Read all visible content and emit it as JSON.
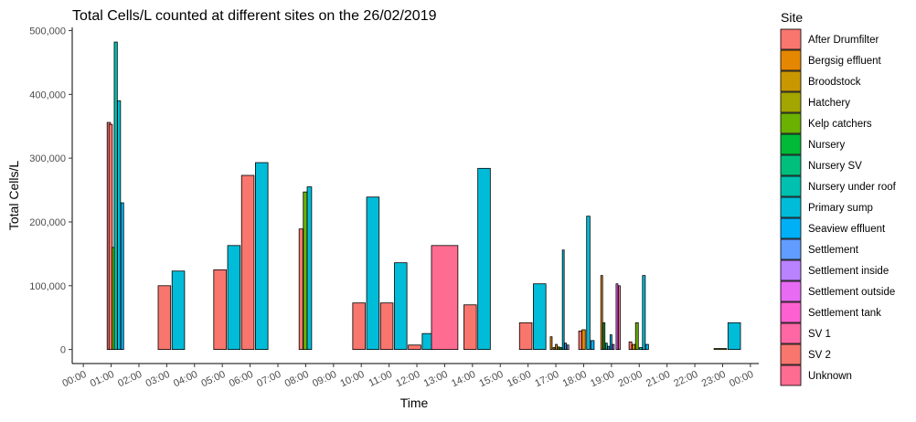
{
  "chart_data": {
    "type": "bar",
    "title": "Total Cells/L counted at different sites on the 26/02/2019",
    "xlabel": "Time",
    "ylabel": "Total Cells/L",
    "ylim": [
      -22000,
      505000
    ],
    "y_ticks": [
      0,
      100000,
      200000,
      300000,
      400000,
      500000
    ],
    "y_tick_labels": [
      "0",
      "100,000",
      "200,000",
      "300,000",
      "400,000",
      "500,000"
    ],
    "x_tick_labels": [
      "00:00",
      "01:00",
      "02:00",
      "03:00",
      "04:00",
      "05:00",
      "06:00",
      "07:00",
      "08:00",
      "09:00",
      "10:00",
      "11:00",
      "12:00",
      "13:00",
      "14:00",
      "15:00",
      "16:00",
      "17:00",
      "18:00",
      "19:00",
      "20:00",
      "21:00",
      "22:00",
      "23:00",
      "00:00"
    ],
    "x_tick_hours": [
      0,
      1,
      2,
      3,
      4,
      5,
      6,
      7,
      8,
      9,
      10,
      11,
      12,
      13,
      14,
      15,
      16,
      17,
      18,
      19,
      20,
      21,
      22,
      23,
      24
    ],
    "xlim": [
      -0.4,
      24.3
    ],
    "legend": {
      "title": "Site",
      "position": "right",
      "entries": [
        {
          "name": "After Drumfilter",
          "color": "#F8766D"
        },
        {
          "name": "Bergsig effluent",
          "color": "#E58700"
        },
        {
          "name": "Broodstock",
          "color": "#C99800"
        },
        {
          "name": "Hatchery",
          "color": "#A3A500"
        },
        {
          "name": "Kelp catchers",
          "color": "#6BB100"
        },
        {
          "name": "Nursery",
          "color": "#00BA38"
        },
        {
          "name": "Nursery SV",
          "color": "#00BF7D"
        },
        {
          "name": "Nursery under roof",
          "color": "#00C0AF"
        },
        {
          "name": "Primary sump",
          "color": "#00BCD8"
        },
        {
          "name": "Seaview effluent",
          "color": "#00B0F6"
        },
        {
          "name": "Settlement",
          "color": "#619CFF"
        },
        {
          "name": "Settlement inside",
          "color": "#B983FF"
        },
        {
          "name": "Settlement outside",
          "color": "#E76BF3"
        },
        {
          "name": "Settlement tank",
          "color": "#FD61D1"
        },
        {
          "name": "SV 1",
          "color": "#FF67A4"
        },
        {
          "name": "SV 2",
          "color": "#F8766D"
        },
        {
          "name": "Unknown",
          "color": "#FF6C91"
        }
      ]
    },
    "bars": [
      {
        "time": "00:55",
        "hour": 0.917,
        "width": 0.12,
        "site": "After Drumfilter",
        "value": 356000
      },
      {
        "time": "00:59",
        "hour": 0.983,
        "width": 0.12,
        "site": "After Drumfilter",
        "value": 353000
      },
      {
        "time": "01:05",
        "hour": 1.083,
        "width": 0.11,
        "site": "Kelp catchers",
        "value": 160000
      },
      {
        "time": "01:10",
        "hour": 1.167,
        "width": 0.11,
        "site": "Nursery under roof",
        "value": 482000
      },
      {
        "time": "01:17",
        "hour": 1.283,
        "width": 0.11,
        "site": "Primary sump",
        "value": 390000
      },
      {
        "time": "01:24",
        "hour": 1.4,
        "width": 0.1,
        "site": "Seaview effluent",
        "value": 230000
      },
      {
        "time": "02:55",
        "hour": 2.917,
        "width": 0.45,
        "site": "After Drumfilter",
        "value": 100000
      },
      {
        "time": "03:25",
        "hour": 3.417,
        "width": 0.45,
        "site": "Primary sump",
        "value": 123000
      },
      {
        "time": "04:55",
        "hour": 4.917,
        "width": 0.45,
        "site": "After Drumfilter",
        "value": 125000
      },
      {
        "time": "05:25",
        "hour": 5.417,
        "width": 0.45,
        "site": "Primary sump",
        "value": 163000
      },
      {
        "time": "05:55",
        "hour": 5.917,
        "width": 0.45,
        "site": "After Drumfilter",
        "value": 273000
      },
      {
        "time": "06:25",
        "hour": 6.417,
        "width": 0.45,
        "site": "Primary sump",
        "value": 293000
      },
      {
        "time": "07:50",
        "hour": 7.833,
        "width": 0.14,
        "site": "After Drumfilter",
        "value": 189000
      },
      {
        "time": "07:59",
        "hour": 7.983,
        "width": 0.14,
        "site": "Kelp catchers",
        "value": 247000
      },
      {
        "time": "08:08",
        "hour": 8.133,
        "width": 0.16,
        "site": "Primary sump",
        "value": 255000
      },
      {
        "time": "09:55",
        "hour": 9.917,
        "width": 0.45,
        "site": "After Drumfilter",
        "value": 73000
      },
      {
        "time": "10:25",
        "hour": 10.417,
        "width": 0.45,
        "site": "Primary sump",
        "value": 239000
      },
      {
        "time": "10:55",
        "hour": 10.917,
        "width": 0.45,
        "site": "After Drumfilter",
        "value": 73000
      },
      {
        "time": "11:25",
        "hour": 11.417,
        "width": 0.45,
        "site": "Primary sump",
        "value": 136000
      },
      {
        "time": "11:55",
        "hour": 11.917,
        "width": 0.45,
        "site": "After Drumfilter",
        "value": 7000
      },
      {
        "time": "12:25",
        "hour": 12.417,
        "width": 0.45,
        "site": "Primary sump",
        "value": 25000
      },
      {
        "time": "13:00",
        "hour": 13.0,
        "width": 0.95,
        "site": "Unknown",
        "value": 163000
      },
      {
        "time": "13:55",
        "hour": 13.917,
        "width": 0.45,
        "site": "After Drumfilter",
        "value": 70000
      },
      {
        "time": "14:25",
        "hour": 14.417,
        "width": 0.45,
        "site": "Primary sump",
        "value": 284000
      },
      {
        "time": "15:55",
        "hour": 15.917,
        "width": 0.45,
        "site": "After Drumfilter",
        "value": 42000
      },
      {
        "time": "16:25",
        "hour": 16.417,
        "width": 0.45,
        "site": "Primary sump",
        "value": 103000
      },
      {
        "time": "16:50",
        "hour": 16.833,
        "width": 0.06,
        "site": "Bergsig effluent",
        "value": 20000
      },
      {
        "time": "16:56",
        "hour": 16.933,
        "width": 0.06,
        "site": "Broodstock",
        "value": 3000
      },
      {
        "time": "17:01",
        "hour": 17.017,
        "width": 0.06,
        "site": "Bergsig effluent",
        "value": 8000
      },
      {
        "time": "17:06",
        "hour": 17.1,
        "width": 0.06,
        "site": "Kelp catchers",
        "value": 4000
      },
      {
        "time": "17:11",
        "hour": 17.183,
        "width": 0.06,
        "site": "Nursery",
        "value": 3000
      },
      {
        "time": "17:16",
        "hour": 17.267,
        "width": 0.06,
        "site": "Primary sump",
        "value": 156000
      },
      {
        "time": "17:21",
        "hour": 17.35,
        "width": 0.06,
        "site": "Seaview effluent",
        "value": 10000
      },
      {
        "time": "17:26",
        "hour": 17.433,
        "width": 0.06,
        "site": "Settlement inside",
        "value": 7000
      },
      {
        "time": "17:53",
        "hour": 17.883,
        "width": 0.12,
        "site": "After Drumfilter",
        "value": 29000
      },
      {
        "time": "18:00",
        "hour": 18.0,
        "width": 0.12,
        "site": "Bergsig effluent",
        "value": 31000
      },
      {
        "time": "18:10",
        "hour": 18.167,
        "width": 0.12,
        "site": "Primary sump",
        "value": 209000
      },
      {
        "time": "18:19",
        "hour": 18.317,
        "width": 0.12,
        "site": "Seaview effluent",
        "value": 14000
      },
      {
        "time": "18:39",
        "hour": 18.65,
        "width": 0.06,
        "site": "Bergsig effluent",
        "value": 116000
      },
      {
        "time": "18:44",
        "hour": 18.733,
        "width": 0.06,
        "site": "Nursery",
        "value": 42000
      },
      {
        "time": "18:49",
        "hour": 18.817,
        "width": 0.06,
        "site": "Nursery under roof",
        "value": 10000
      },
      {
        "time": "18:54",
        "hour": 18.9,
        "width": 0.06,
        "site": "Settlement",
        "value": 5000
      },
      {
        "time": "18:59",
        "hour": 18.983,
        "width": 0.06,
        "site": "Seaview effluent",
        "value": 23000
      },
      {
        "time": "19:04",
        "hour": 19.067,
        "width": 0.06,
        "site": "Settlement inside",
        "value": 8000
      },
      {
        "time": "19:12",
        "hour": 19.2,
        "width": 0.06,
        "site": "Settlement outside",
        "value": 103000
      },
      {
        "time": "19:17",
        "hour": 19.283,
        "width": 0.06,
        "site": "SV 1",
        "value": 100000
      },
      {
        "time": "19:41",
        "hour": 19.683,
        "width": 0.1,
        "site": "After Drumfilter",
        "value": 12000
      },
      {
        "time": "19:48",
        "hour": 19.8,
        "width": 0.1,
        "site": "Bergsig effluent",
        "value": 8000
      },
      {
        "time": "19:55",
        "hour": 19.917,
        "width": 0.1,
        "site": "Kelp catchers",
        "value": 42000
      },
      {
        "time": "20:03",
        "hour": 20.05,
        "width": 0.1,
        "site": "Nursery under roof",
        "value": 3000
      },
      {
        "time": "20:10",
        "hour": 20.167,
        "width": 0.1,
        "site": "Primary sump",
        "value": 116000
      },
      {
        "time": "20:17",
        "hour": 20.283,
        "width": 0.1,
        "site": "Seaview effluent",
        "value": 8000
      },
      {
        "time": "22:55",
        "hour": 22.917,
        "width": 0.45,
        "site": "Hatchery",
        "value": 1500
      },
      {
        "time": "23:25",
        "hour": 23.417,
        "width": 0.45,
        "site": "Primary sump",
        "value": 42000
      }
    ]
  }
}
